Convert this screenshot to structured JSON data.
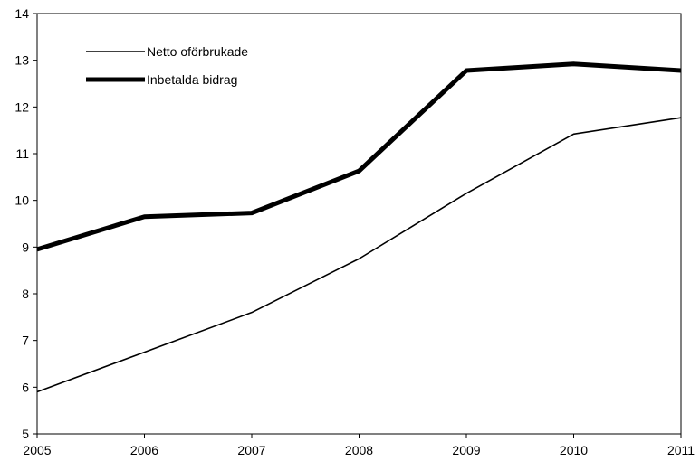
{
  "chart_data": {
    "type": "line",
    "title": "",
    "xlabel": "",
    "ylabel": "",
    "x": [
      "2005",
      "2006",
      "2007",
      "2008",
      "2009",
      "2010",
      "2011"
    ],
    "ylim": [
      5,
      14
    ],
    "yticks": [
      "5",
      "6",
      "7",
      "8",
      "9",
      "10",
      "11",
      "12",
      "13",
      "14"
    ],
    "grid": false,
    "legend": "top-left",
    "series": [
      {
        "name": "Netto oförbrukade",
        "values": [
          5.9,
          6.75,
          7.6,
          8.75,
          10.15,
          11.42,
          11.77
        ],
        "color": "#000000",
        "weight": "thin"
      },
      {
        "name": "Inbetalda bidrag",
        "values": [
          8.95,
          9.65,
          9.73,
          10.63,
          12.78,
          12.92,
          12.78
        ],
        "color": "#000000",
        "weight": "thick"
      }
    ]
  }
}
